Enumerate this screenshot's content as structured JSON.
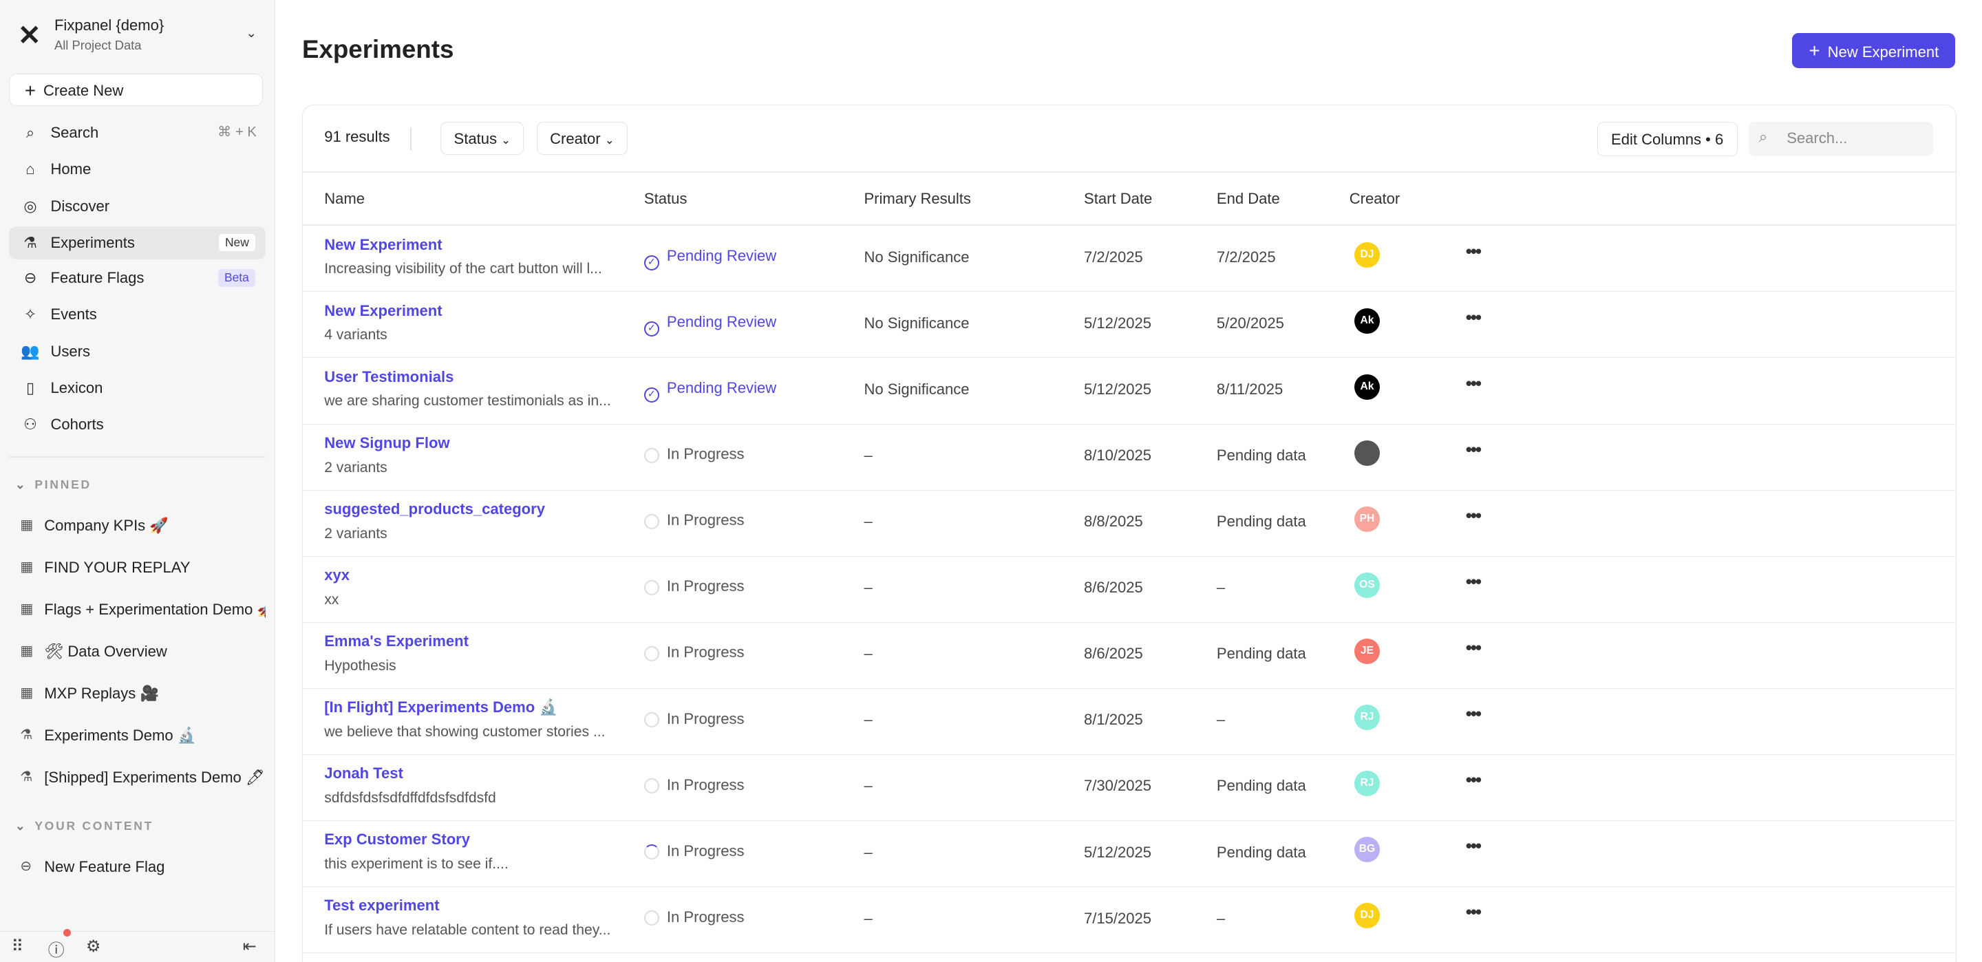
{
  "project": {
    "name": "Fixpanel {demo}",
    "subtitle": "All Project Data"
  },
  "sidebar": {
    "create_label": "Create New",
    "search_shortcut": "⌘ + K",
    "items": [
      {
        "label": "Search",
        "icon": "⌕"
      },
      {
        "label": "Home",
        "icon": "⌂"
      },
      {
        "label": "Discover",
        "icon": "◎"
      },
      {
        "label": "Experiments",
        "icon": "⚗",
        "badge": "New"
      },
      {
        "label": "Feature Flags",
        "icon": "⊖",
        "badge": "Beta"
      },
      {
        "label": "Events",
        "icon": "✧"
      },
      {
        "label": "Users",
        "icon": "👥"
      },
      {
        "label": "Lexicon",
        "icon": "▯"
      },
      {
        "label": "Cohorts",
        "icon": "⚇"
      }
    ],
    "pinned_heading": "PINNED",
    "pinned": [
      {
        "label": "Company KPIs 🚀",
        "icon": "▦"
      },
      {
        "label": "FIND YOUR REPLAY",
        "icon": "▦"
      },
      {
        "label": "Flags + Experimentation Demo 🚀",
        "icon": "▦"
      },
      {
        "label": "🛠 Data Overview",
        "icon": "▦"
      },
      {
        "label": "MXP Replays 🎥",
        "icon": "▦"
      },
      {
        "label": "Experiments Demo 🔬",
        "icon": "⚗"
      },
      {
        "label": "[Shipped] Experiments Demo 🖊",
        "icon": "⚗"
      }
    ],
    "content_heading": "YOUR CONTENT",
    "content": [
      {
        "label": "New Feature Flag",
        "icon": "⊖"
      }
    ]
  },
  "page": {
    "title": "Experiments",
    "new_button": "New Experiment"
  },
  "toolbar": {
    "results": "91 results",
    "status_filter": "Status",
    "creator_filter": "Creator",
    "edit_columns": "Edit Columns • 6",
    "search_placeholder": "Search..."
  },
  "table": {
    "columns": [
      "Name",
      "Status",
      "Primary Results",
      "Start Date",
      "End Date",
      "Creator"
    ],
    "rows": [
      {
        "name": "New Experiment",
        "desc": "Increasing visibility of the cart button will l...",
        "status": "Pending Review",
        "result": "No Significance",
        "start": "7/2/2025",
        "end": "7/2/2025",
        "creator": "DJ",
        "color": "#fcd116"
      },
      {
        "name": "New Experiment",
        "desc": "4 variants",
        "status": "Pending Review",
        "result": "No Significance",
        "start": "5/12/2025",
        "end": "5/20/2025",
        "creator": "Ak",
        "color": "#000000"
      },
      {
        "name": "User Testimonials",
        "desc": "we are sharing customer testimonials as in...",
        "status": "Pending Review",
        "result": "No Significance",
        "start": "5/12/2025",
        "end": "8/11/2025",
        "creator": "Ak",
        "color": "#000000"
      },
      {
        "name": "New Signup Flow",
        "desc": "2 variants",
        "status": "In Progress",
        "result": "–",
        "start": "8/10/2025",
        "end": "Pending data",
        "creator": "",
        "color": "#555555"
      },
      {
        "name": "suggested_products_category",
        "desc": "2 variants",
        "status": "In Progress",
        "result": "–",
        "start": "8/8/2025",
        "end": "Pending data",
        "creator": "PH",
        "color": "#f8a59d"
      },
      {
        "name": "xyx",
        "desc": "xx",
        "status": "In Progress",
        "result": "–",
        "start": "8/6/2025",
        "end": "–",
        "creator": "OS",
        "color": "#8beedd"
      },
      {
        "name": "Emma's Experiment",
        "desc": "Hypothesis",
        "status": "In Progress",
        "result": "–",
        "start": "8/6/2025",
        "end": "Pending data",
        "creator": "JE",
        "color": "#f9776c"
      },
      {
        "name": "[In Flight] Experiments Demo 🔬",
        "desc": "we believe that showing customer stories ...",
        "status": "In Progress",
        "result": "–",
        "start": "8/1/2025",
        "end": "–",
        "creator": "RJ",
        "color": "#8beedd"
      },
      {
        "name": "Jonah Test",
        "desc": "sdfdsfdsfsdfdffdfdsfsdfdsfd",
        "status": "In Progress",
        "result": "–",
        "start": "7/30/2025",
        "end": "Pending data",
        "creator": "RJ",
        "color": "#8beedd"
      },
      {
        "name": "Exp Customer Story",
        "desc": "this experiment is to see if....",
        "status": "In Progress",
        "result": "–",
        "start": "5/12/2025",
        "end": "Pending data",
        "creator": "BG",
        "color": "#bcaff5"
      },
      {
        "name": "Test experiment",
        "desc": "If users have relatable content to read they...",
        "status": "In Progress",
        "result": "–",
        "start": "7/15/2025",
        "end": "–",
        "creator": "DJ",
        "color": "#fcd116"
      }
    ]
  },
  "colors": {
    "accent": "#5046e4"
  }
}
